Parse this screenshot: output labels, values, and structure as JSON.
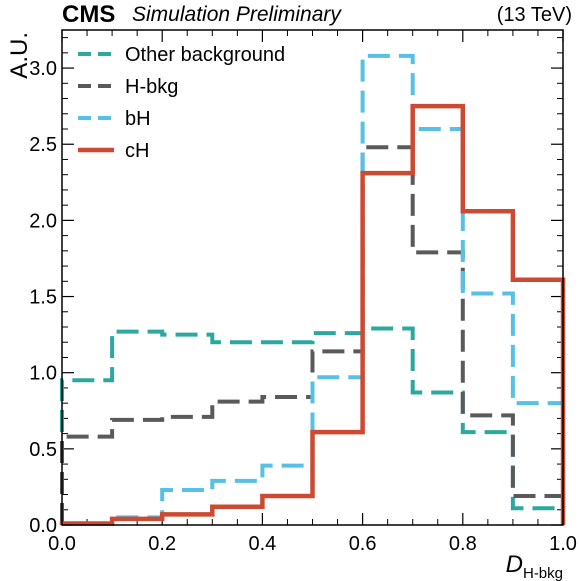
{
  "header": {
    "experiment": "CMS",
    "status": "Simulation Preliminary",
    "energy": "(13 TeV)"
  },
  "chart_data": {
    "type": "step-histogram",
    "xlabel": "D",
    "xlabel_subscript": "H-bkg",
    "ylabel": "A.U.",
    "xlim": [
      0.0,
      1.0
    ],
    "ylim": [
      0.0,
      3.25
    ],
    "x_ticks": [
      "0.0",
      "0.2",
      "0.4",
      "0.6",
      "0.8",
      "1.0"
    ],
    "y_ticks": [
      "0.0",
      "0.5",
      "1.0",
      "1.5",
      "2.0",
      "2.5",
      "3.0"
    ],
    "bin_edges": [
      0.0,
      0.1,
      0.2,
      0.3,
      0.4,
      0.5,
      0.6,
      0.7,
      0.8,
      0.9,
      1.0
    ],
    "legend_position": "top-left",
    "series": [
      {
        "name": "Other background",
        "color": "#2ca89f",
        "dash": "dashed",
        "values": [
          0.95,
          1.27,
          1.25,
          1.2,
          1.2,
          1.26,
          1.29,
          0.87,
          0.61,
          0.11
        ]
      },
      {
        "name": "H-bkg",
        "color": "#5a5a5a",
        "dash": "dashed",
        "values": [
          0.58,
          0.69,
          0.71,
          0.81,
          0.84,
          1.14,
          2.48,
          1.79,
          0.72,
          0.19
        ]
      },
      {
        "name": "bH",
        "color": "#57c0e6",
        "dash": "dashed",
        "values": [
          0.01,
          0.05,
          0.23,
          0.29,
          0.39,
          0.97,
          3.08,
          2.6,
          1.52,
          0.8
        ]
      },
      {
        "name": "cH",
        "color": "#cc4a32",
        "dash": "solid",
        "values": [
          0.01,
          0.04,
          0.07,
          0.12,
          0.19,
          0.61,
          2.31,
          2.75,
          2.06,
          1.61
        ]
      }
    ]
  }
}
